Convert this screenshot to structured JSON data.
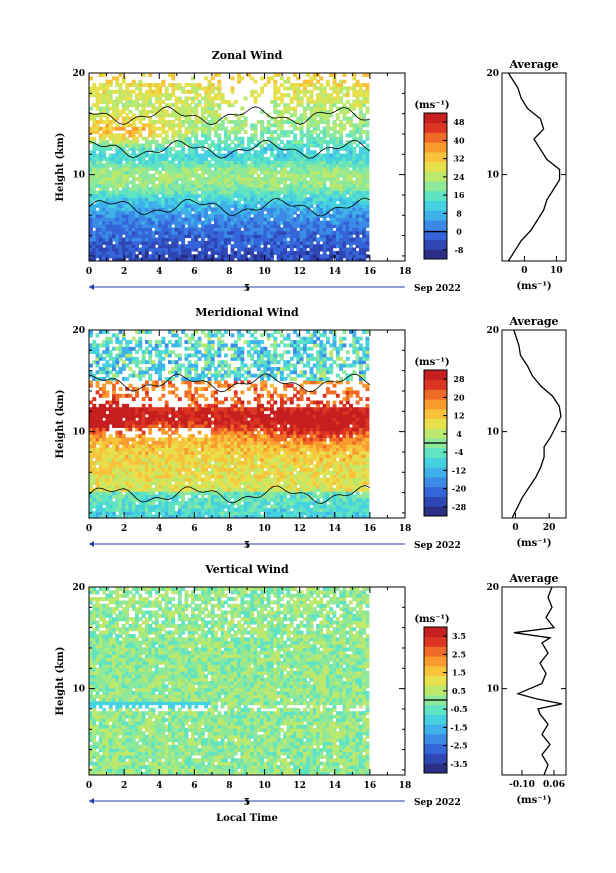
{
  "chart_data": [
    {
      "type": "heatmap",
      "title": "Zonal Wind",
      "ylabel": "Height (km)",
      "ylim": [
        1.5,
        20
      ],
      "xlim": [
        0,
        18
      ],
      "xticks": [
        "0",
        "2",
        "4",
        "6",
        "8",
        "10",
        "12",
        "14",
        "16",
        "18"
      ],
      "yticks": [
        "10",
        "20"
      ],
      "day_marker": "5",
      "date_label": "Sep 2022",
      "colorbar": {
        "unit": "(ms⁻¹)",
        "ticks": [
          "48",
          "40",
          "32",
          "24",
          "16",
          "8",
          "0",
          "-8"
        ],
        "min": -12,
        "max": 52
      },
      "profile": {
        "title": "Average",
        "xlabel": "(ms⁻¹)",
        "xticks": [
          "0",
          "10"
        ],
        "xlim": [
          -7,
          13
        ],
        "height": [
          1.5,
          2.5,
          3.5,
          4.5,
          5.5,
          6.5,
          7.5,
          8.5,
          9.5,
          10.5,
          11.5,
          12.5,
          13.5,
          14.5,
          15.5,
          16.5,
          17.5,
          18.5,
          19.5,
          20.0
        ],
        "value": [
          -5,
          -3,
          -1,
          2,
          4,
          6,
          7,
          9,
          11,
          11,
          7,
          5,
          3,
          6,
          5,
          1,
          -1,
          -2,
          -4,
          -5
        ]
      }
    },
    {
      "type": "heatmap",
      "title": "Meridional Wind",
      "ylabel": "Height (km)",
      "ylim": [
        1.5,
        20
      ],
      "xlim": [
        0,
        18
      ],
      "xticks": [
        "0",
        "2",
        "4",
        "6",
        "8",
        "10",
        "12",
        "14",
        "16",
        "18"
      ],
      "yticks": [
        "10",
        "20"
      ],
      "day_marker": "5",
      "date_label": "Sep 2022",
      "colorbar": {
        "unit": "(ms⁻¹)",
        "ticks": [
          "28",
          "20",
          "12",
          "4",
          "-4",
          "-12",
          "-20",
          "-28"
        ],
        "min": -32,
        "max": 32
      },
      "profile": {
        "title": "Average",
        "xlabel": "(ms⁻¹)",
        "xticks": [
          "0",
          "20"
        ],
        "xlim": [
          -8,
          30
        ],
        "height": [
          1.5,
          2.5,
          3.5,
          4.5,
          5.5,
          6.5,
          7.5,
          8.5,
          9.5,
          10.5,
          11.5,
          12.5,
          13.5,
          14.5,
          15.5,
          16.5,
          17.5,
          18.5,
          19.5,
          20.0
        ],
        "value": [
          -2,
          1,
          4,
          8,
          12,
          15,
          17,
          17,
          21,
          24,
          27,
          26,
          22,
          15,
          10,
          7,
          3,
          2,
          0,
          -1
        ]
      }
    },
    {
      "type": "heatmap",
      "title": "Vertical Wind",
      "ylabel": "Height (km)",
      "xlabel": "Local Time",
      "ylim": [
        1.5,
        20
      ],
      "xlim": [
        0,
        18
      ],
      "xticks": [
        "0",
        "2",
        "4",
        "6",
        "8",
        "10",
        "12",
        "14",
        "16",
        "18"
      ],
      "yticks": [
        "10",
        "20"
      ],
      "day_marker": "5",
      "date_label": "Sep 2022",
      "colorbar": {
        "unit": "(ms⁻¹)",
        "ticks": [
          "3.5",
          "2.5",
          "1.5",
          "0.5",
          "-0.5",
          "-1.5",
          "-2.5",
          "-3.5"
        ],
        "min": -4,
        "max": 4
      },
      "profile": {
        "title": "Average",
        "xlabel": "(ms⁻¹)",
        "xticks": [
          "-0.10",
          "0.06"
        ],
        "xlim": [
          -0.2,
          0.12
        ],
        "height": [
          1.5,
          2.5,
          3.5,
          4.5,
          5.5,
          6.5,
          7.5,
          8.0,
          8.5,
          9.0,
          9.5,
          10.5,
          11.5,
          12.5,
          13.5,
          14.5,
          15.0,
          15.5,
          16.0,
          17.0,
          18.0,
          19.0,
          20.0
        ],
        "value": [
          0.01,
          0.03,
          0.0,
          0.04,
          0.0,
          0.03,
          -0.01,
          -0.02,
          0.1,
          -0.03,
          -0.12,
          0.0,
          0.02,
          -0.01,
          0.03,
          0.0,
          0.04,
          -0.14,
          0.06,
          0.02,
          0.05,
          0.03,
          0.05
        ]
      }
    }
  ]
}
